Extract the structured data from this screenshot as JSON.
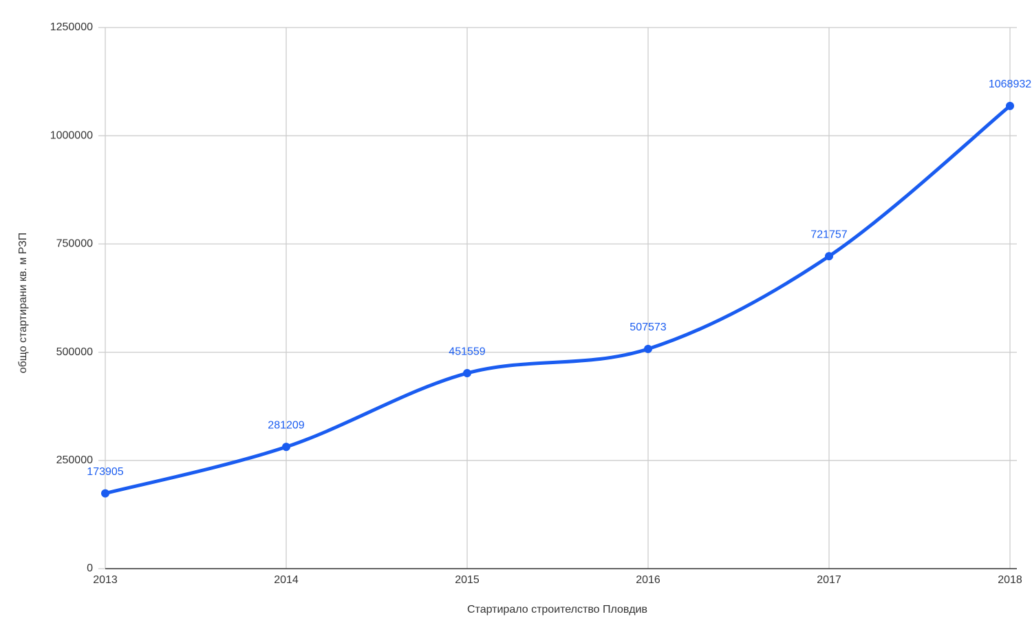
{
  "chart_data": {
    "type": "line",
    "x_label": "Стартирало строителство Пловдив",
    "y_label": "общо стартирани кв. м РЗП",
    "x": [
      2013,
      2014,
      2015,
      2016,
      2017,
      2018
    ],
    "series": [
      {
        "name": "общо стартирани кв. м РЗП",
        "color": "#1a5cf0",
        "values": [
          173905,
          281209,
          451559,
          507573,
          721757,
          1068932
        ]
      }
    ],
    "xlim": [
      2013,
      2018
    ],
    "xticks": [
      2013,
      2014,
      2015,
      2016,
      2017,
      2018
    ],
    "ylim": [
      0,
      1250000
    ],
    "yticks": [
      0,
      250000,
      500000,
      750000,
      1000000,
      1250000
    ],
    "grid": true,
    "smooth": true,
    "data_labels": true
  }
}
